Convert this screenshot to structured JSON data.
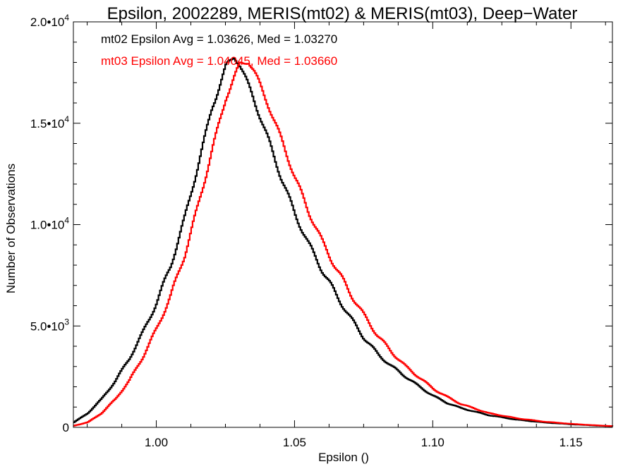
{
  "chart_data": {
    "type": "line",
    "title": "Epsilon, 2002289, MERIS(mt02) & MERIS(mt03), Deep−Water",
    "xlabel": "Epsilon ()",
    "ylabel": "Number of Observations",
    "xlim": [
      0.97,
      1.165
    ],
    "ylim": [
      0,
      20000
    ],
    "grid": false,
    "step": true,
    "x_ticks": [
      {
        "value": 1.0,
        "label": "1.00"
      },
      {
        "value": 1.05,
        "label": "1.05"
      },
      {
        "value": 1.1,
        "label": "1.10"
      },
      {
        "value": 1.15,
        "label": "1.15"
      }
    ],
    "y_ticks": [
      {
        "value": 0,
        "mantissa": "0",
        "exp": ""
      },
      {
        "value": 5000,
        "mantissa": "5.0•1",
        "exp": "3"
      },
      {
        "value": 10000,
        "mantissa": "1.0•1",
        "exp": "4"
      },
      {
        "value": 15000,
        "mantissa": "1.5•1",
        "exp": "4"
      },
      {
        "value": 20000,
        "mantissa": "2.0•1",
        "exp": "4"
      }
    ],
    "annotations": [
      {
        "text": "mt02 Epsilon Avg = 1.03626, Med = 1.03270",
        "color": "#000000"
      },
      {
        "text": "mt03 Epsilon Avg = 1.04045, Med = 1.03660",
        "color": "#ff0000"
      }
    ],
    "series": [
      {
        "color": "#000000",
        "x": [
          0.97,
          0.975,
          0.98,
          0.985,
          0.99,
          0.995,
          1.0,
          1.005,
          1.01,
          1.015,
          1.02,
          1.025,
          1.028,
          1.03,
          1.035,
          1.04,
          1.045,
          1.05,
          1.055,
          1.06,
          1.065,
          1.07,
          1.075,
          1.08,
          1.085,
          1.09,
          1.095,
          1.1,
          1.105,
          1.11,
          1.12,
          1.13,
          1.14,
          1.15,
          1.16,
          1.165
        ],
        "y": [
          250,
          700,
          1400,
          2300,
          3400,
          4700,
          6200,
          8000,
          10300,
          13000,
          15800,
          17800,
          18300,
          17900,
          16200,
          14300,
          12300,
          10500,
          9000,
          7700,
          6500,
          5400,
          4400,
          3600,
          3000,
          2500,
          2000,
          1550,
          1200,
          950,
          600,
          380,
          240,
          150,
          80,
          50
        ]
      },
      {
        "color": "#ff0000",
        "x": [
          0.97,
          0.975,
          0.98,
          0.985,
          0.99,
          0.995,
          1.0,
          1.005,
          1.01,
          1.015,
          1.02,
          1.025,
          1.03,
          1.033,
          1.035,
          1.04,
          1.045,
          1.05,
          1.055,
          1.06,
          1.065,
          1.07,
          1.075,
          1.08,
          1.085,
          1.09,
          1.095,
          1.1,
          1.105,
          1.11,
          1.12,
          1.13,
          1.14,
          1.15,
          1.16,
          1.165
        ],
        "y": [
          80,
          250,
          700,
          1400,
          2300,
          3500,
          4900,
          6500,
          8500,
          11000,
          13700,
          16300,
          17900,
          18100,
          17600,
          16000,
          14200,
          12300,
          10600,
          9100,
          7800,
          6600,
          5500,
          4500,
          3700,
          3000,
          2450,
          1900,
          1500,
          1150,
          700,
          450,
          280,
          170,
          90,
          60
        ]
      }
    ]
  }
}
